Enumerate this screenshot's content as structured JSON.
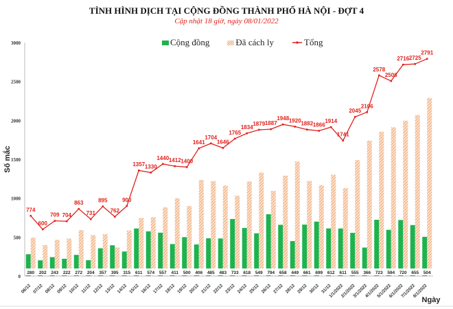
{
  "chart_data": {
    "type": "bar",
    "title": "TÌNH HÌNH DỊCH TẠI CỘNG ĐỒNG THÀNH PHỐ HÀ NỘI - ĐỢT 4",
    "subtitle": "Cập nhật 18 giờ, ngày 08/01/2022",
    "xlabel": "Ngày",
    "ylabel": "Số mắc",
    "ylim": [
      0,
      3000
    ],
    "yticks": [
      0,
      500,
      1000,
      1500,
      2000,
      2500,
      3000
    ],
    "grid": false,
    "legend_position": "top",
    "categories": [
      "06/12",
      "07/12",
      "08/12",
      "09/12",
      "10/12",
      "11/12",
      "12/12",
      "13/12",
      "14/12",
      "15/12",
      "16/12",
      "17/12",
      "18/12",
      "19/12",
      "20/12",
      "21/12",
      "22/12",
      "23/12",
      "24/12",
      "25/12",
      "26/12",
      "27/12",
      "28/12",
      "29/12",
      "30/12",
      "31/12",
      "1/1/2022",
      "2/1/2022",
      "3/1/2022",
      "4/1/2022",
      "5/1/2022",
      "6/1/2022",
      "7/1/2022",
      "8/1/2022"
    ],
    "series": [
      {
        "name": "Cộng đồng",
        "type": "bar",
        "color": "#1db34f",
        "values": [
          280,
          202,
          243,
          222,
          272,
          204,
          357,
          395,
          315,
          611,
          574,
          557,
          411,
          500,
          406,
          485,
          483,
          733,
          618,
          549,
          794,
          658,
          449,
          661,
          699,
          612,
          611,
          555,
          366,
          723,
          594,
          720,
          655,
          504
        ]
      },
      {
        "name": "Đã cách ly",
        "type": "bar",
        "color": "#f2a46a",
        "values": [
          494,
          398,
          466,
          482,
          591,
          527,
          538,
          367,
          585,
          746,
          756,
          883,
          1001,
          900,
          1235,
          1219,
          1163,
          1032,
          1216,
          1330,
          1093,
          1290,
          1471,
          1221,
          1167,
          1302,
          1130,
          1490,
          1740,
          1855,
          1912,
          1996,
          2070,
          2287
        ]
      },
      {
        "name": "Tổng",
        "type": "line",
        "color": "#e0201b",
        "values": [
          774,
          600,
          709,
          704,
          863,
          731,
          895,
          762,
          900,
          1357,
          1330,
          1440,
          1412,
          1400,
          1641,
          1704,
          1646,
          1765,
          1834,
          1879,
          1887,
          1948,
          1920,
          1882,
          1866,
          1914,
          1741,
          2045,
          2106,
          2578,
          2506,
          2716,
          2725,
          2791
        ]
      }
    ]
  }
}
